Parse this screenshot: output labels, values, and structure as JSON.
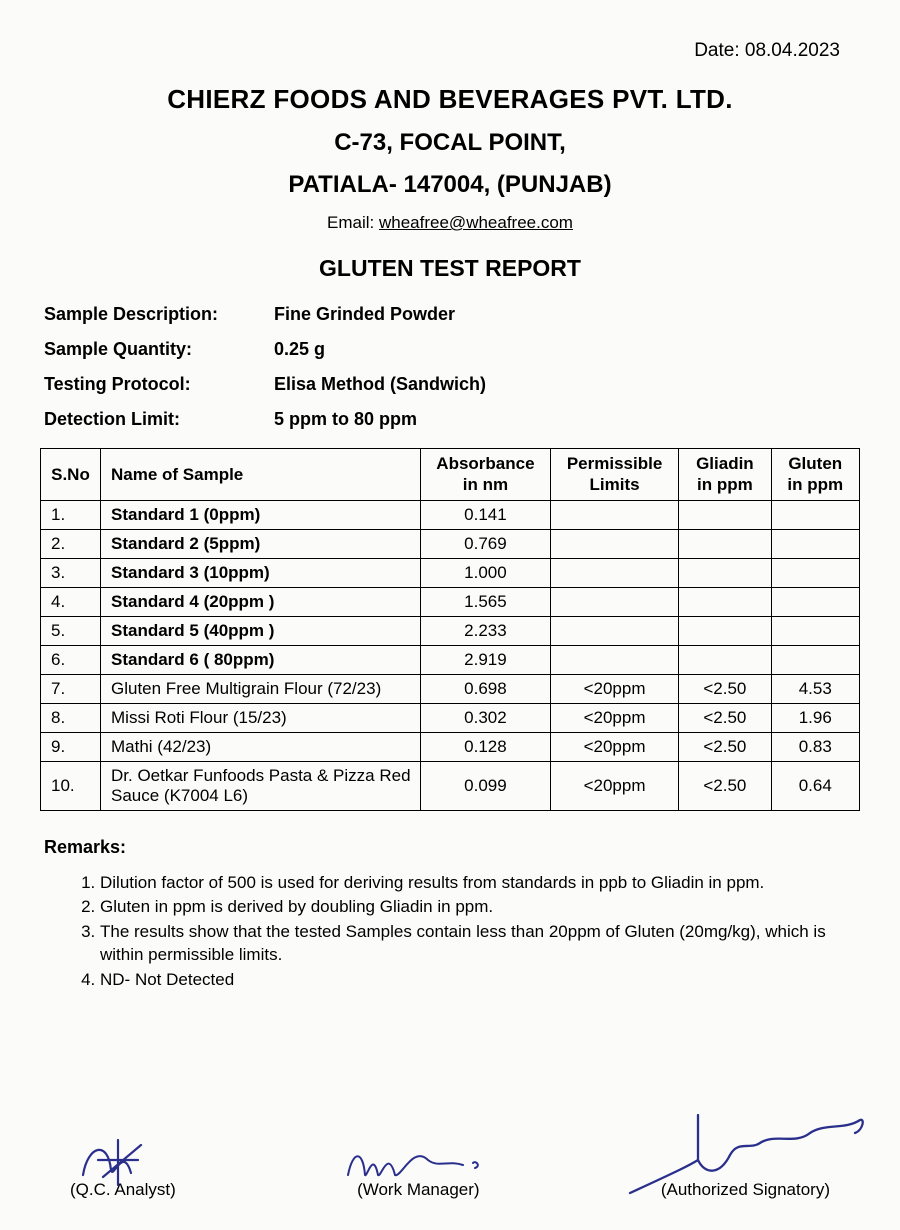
{
  "date_label": "Date: 08.04.2023",
  "header": {
    "company": "CHIERZ FOODS AND BEVERAGES PVT. LTD.",
    "addr1": "C-73, FOCAL POINT,",
    "addr2": "PATIALA- 147004, (PUNJAB)",
    "email_prefix": "Email: ",
    "email": "wheafree@wheafree.com",
    "report_title": "GLUTEN TEST REPORT"
  },
  "meta": {
    "labels": {
      "desc": "Sample Description:",
      "qty": "Sample Quantity:",
      "protocol": "Testing Protocol:",
      "limit": "Detection Limit:"
    },
    "values": {
      "desc": "Fine Grinded Powder",
      "qty": "0.25 g",
      "protocol": "Elisa Method (Sandwich)",
      "limit": "5 ppm to 80 ppm"
    }
  },
  "table": {
    "columns": {
      "sno": "S.No",
      "name": "Name of Sample",
      "abs": "Absorbance in nm",
      "perm": "Permissible Limits",
      "gliadin": "Gliadin in ppm",
      "gluten": "Gluten in ppm"
    },
    "rows": [
      {
        "sno": "1.",
        "name": "Standard 1 (0ppm)",
        "bold": true,
        "abs": "0.141",
        "perm": "",
        "gliadin": "",
        "gluten": ""
      },
      {
        "sno": "2.",
        "name": "Standard 2 (5ppm)",
        "bold": true,
        "abs": "0.769",
        "perm": "",
        "gliadin": "",
        "gluten": ""
      },
      {
        "sno": "3.",
        "name": "Standard 3 (10ppm)",
        "bold": true,
        "abs": "1.000",
        "perm": "",
        "gliadin": "",
        "gluten": ""
      },
      {
        "sno": "4.",
        "name": "Standard 4 (20ppm )",
        "bold": true,
        "abs": "1.565",
        "perm": "",
        "gliadin": "",
        "gluten": ""
      },
      {
        "sno": "5.",
        "name": "Standard 5 (40ppm )",
        "bold": true,
        "abs": "2.233",
        "perm": "",
        "gliadin": "",
        "gluten": ""
      },
      {
        "sno": "6.",
        "name": "Standard 6 ( 80ppm)",
        "bold": true,
        "abs": "2.919",
        "perm": "",
        "gliadin": "",
        "gluten": ""
      },
      {
        "sno": "7.",
        "name": "Gluten Free Multigrain Flour (72/23)",
        "bold": false,
        "abs": "0.698",
        "perm": "<20ppm",
        "gliadin": "<2.50",
        "gluten": "4.53"
      },
      {
        "sno": "8.",
        "name": "Missi Roti Flour (15/23)",
        "bold": false,
        "abs": "0.302",
        "perm": "<20ppm",
        "gliadin": "<2.50",
        "gluten": "1.96"
      },
      {
        "sno": "9.",
        "name": "Mathi (42/23)",
        "bold": false,
        "abs": "0.128",
        "perm": "<20ppm",
        "gliadin": "<2.50",
        "gluten": "0.83"
      },
      {
        "sno": "10.",
        "name": "Dr. Oetkar Funfoods Pasta & Pizza Red Sauce (K7004 L6)",
        "bold": false,
        "abs": "0.099",
        "perm": "<20ppm",
        "gliadin": "<2.50",
        "gluten": "0.64"
      }
    ]
  },
  "remarks": {
    "title": "Remarks:",
    "items": [
      "Dilution factor of 500 is used for deriving results from standards in ppb to Gliadin in ppm.",
      "Gluten in ppm is derived by doubling Gliadin in ppm.",
      "The results show that the tested Samples contain less than 20ppm of Gluten (20mg/kg), which is within permissible limits.",
      "ND- Not Detected"
    ]
  },
  "signatures": {
    "analyst": "(Q.C. Analyst)",
    "manager": "(Work Manager)",
    "authorized": "(Authorized Signatory)"
  },
  "colors": {
    "text": "#000000",
    "sig_ink": "#2a2f8c",
    "background": "#fbfbfa",
    "border": "#000000"
  }
}
